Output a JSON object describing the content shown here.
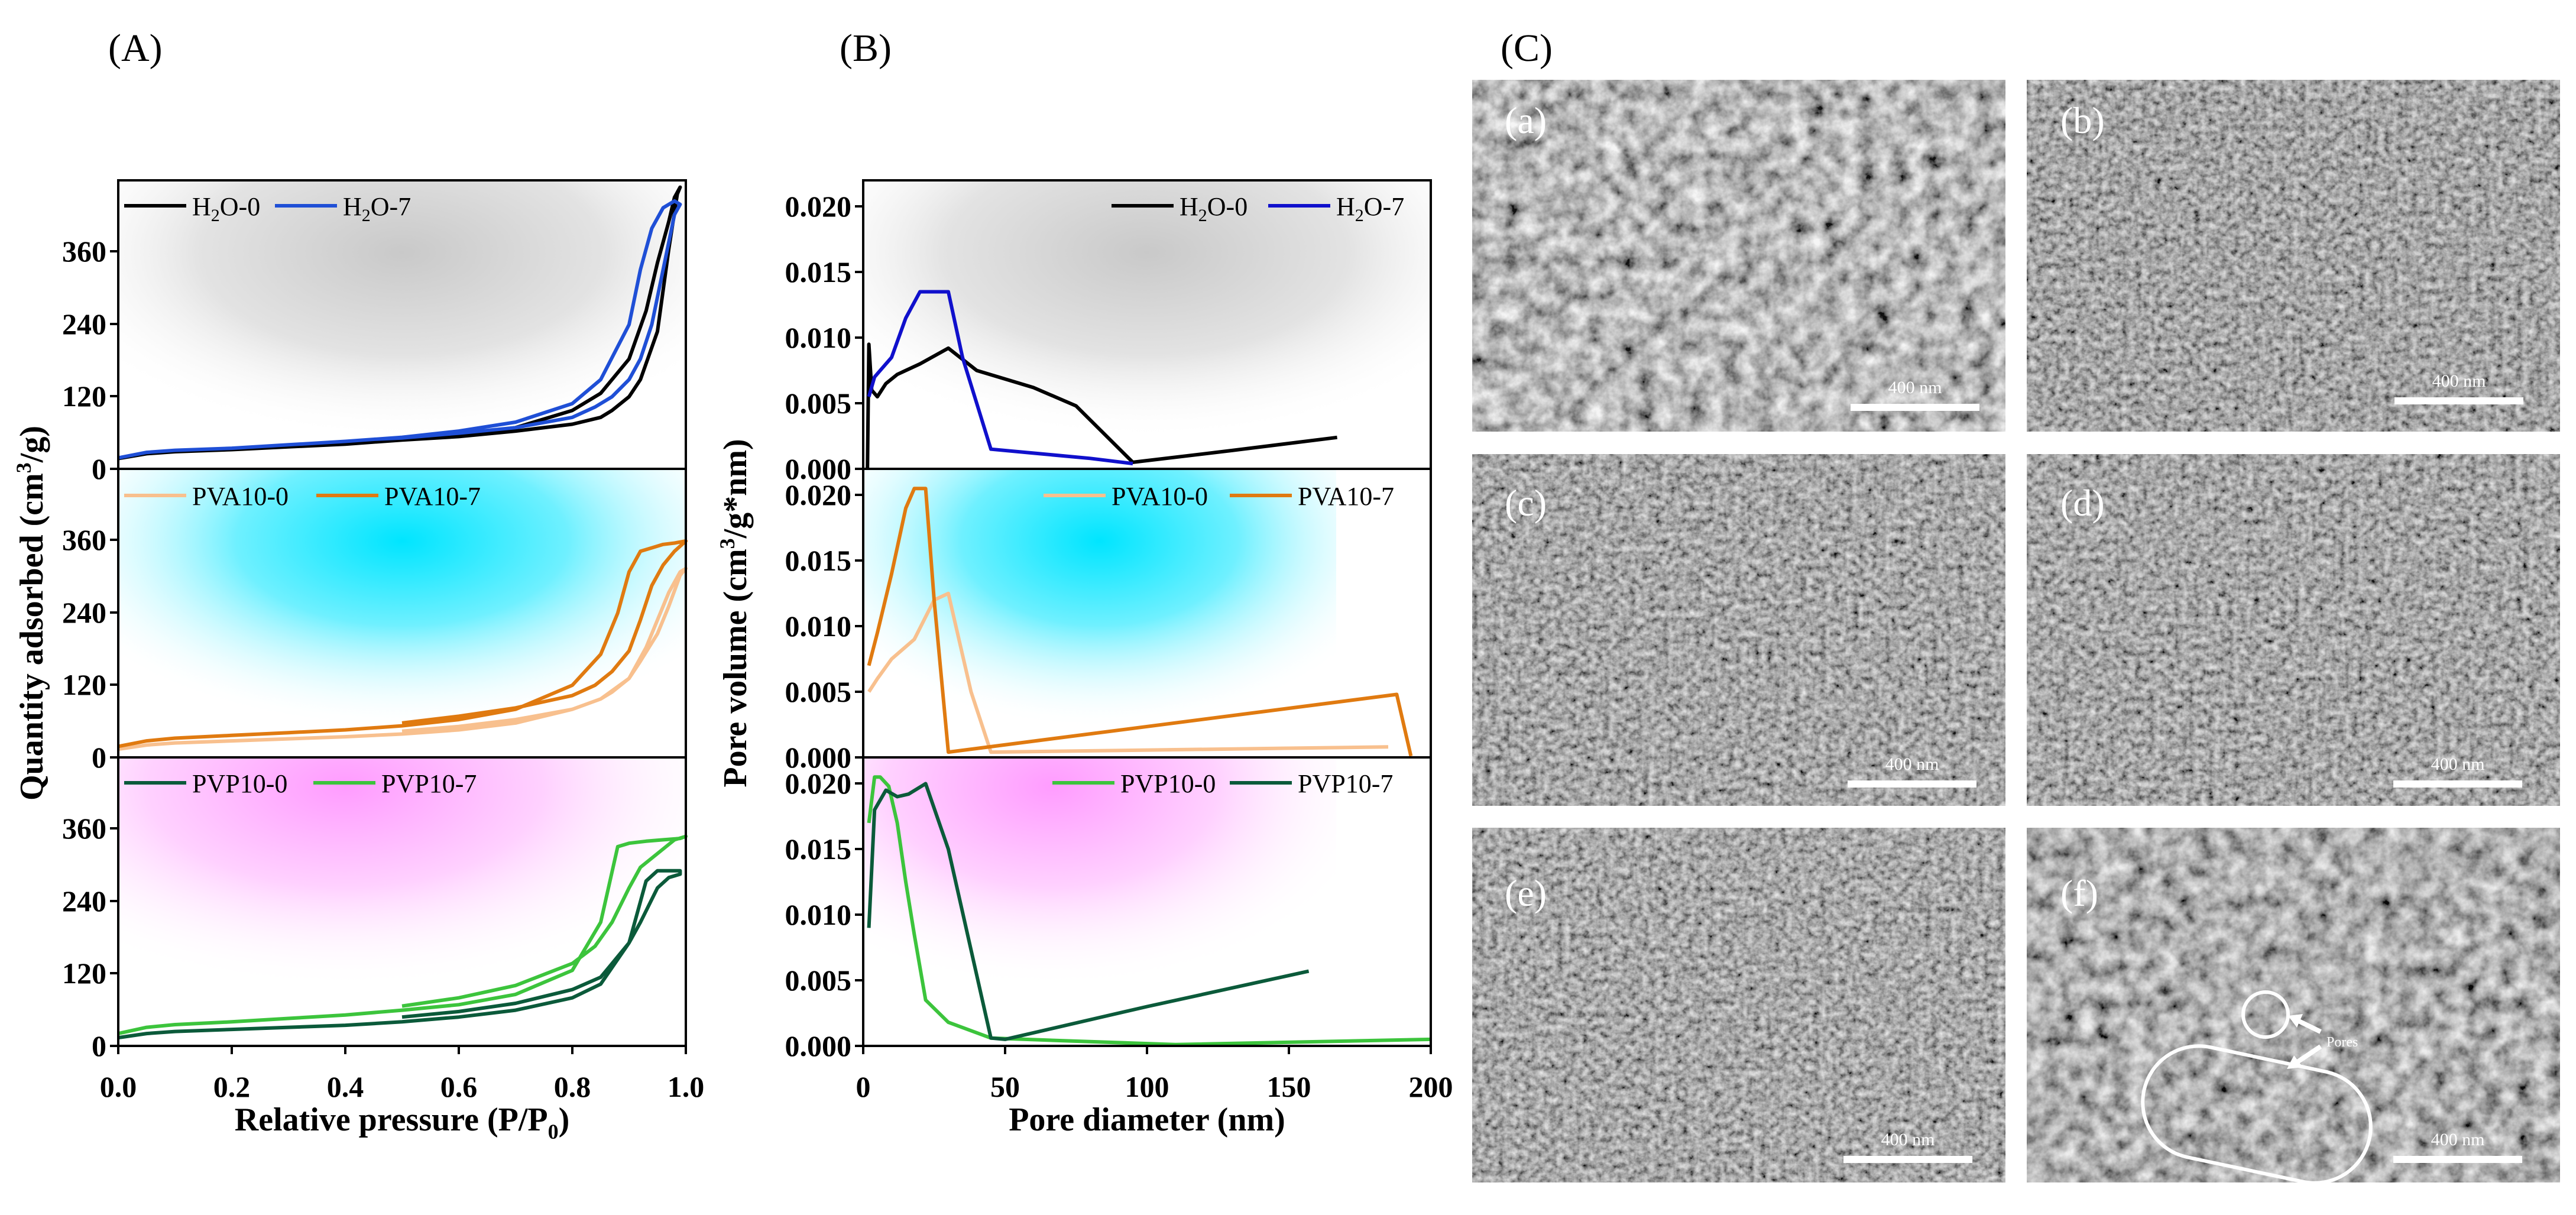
{
  "panels": {
    "A": {
      "letter": "(A)",
      "xlabel": "Relative pressure (P/P",
      "xlabel_sub": "0",
      "xlabel_tail": ")",
      "ylabel": "Quantity adsorbed (cm",
      "ylabel_sup": "3",
      "ylabel_tail": "/g)",
      "x_ticks": [
        "0.0",
        "0.2",
        "0.4",
        "0.6",
        "0.8",
        "1.0"
      ],
      "y_ticks": [
        "0",
        "120",
        "240",
        "360"
      ]
    },
    "B": {
      "letter": "(B)",
      "xlabel": "Pore diameter (nm)",
      "ylabel": "Pore volume (cm",
      "ylabel_sup": "3",
      "ylabel_tail": "/g*nm)",
      "x_ticks": [
        "0",
        "50",
        "100",
        "150",
        "200"
      ],
      "y_ticks": [
        "0.000",
        "0.005",
        "0.010",
        "0.015",
        "0.020"
      ]
    },
    "C": {
      "letter": "(C)",
      "images": [
        {
          "label": "(a)",
          "scale": "400 nm"
        },
        {
          "label": "(b)",
          "scale": "400 nm"
        },
        {
          "label": "(c)",
          "scale": "400 nm"
        },
        {
          "label": "(d)",
          "scale": "400 nm"
        },
        {
          "label": "(e)",
          "scale": "400 nm"
        },
        {
          "label": "(f)",
          "scale": "400 nm"
        }
      ],
      "pores_label": "Pores"
    }
  },
  "legends": {
    "A1": [
      {
        "base": "H",
        "sub": "2",
        "tail": "O-0",
        "color": "#000000"
      },
      {
        "base": "H",
        "sub": "2",
        "tail": "O-7",
        "color": "#1f4fd6"
      }
    ],
    "A2": [
      {
        "base": "PVA10-0",
        "sub": "",
        "tail": "",
        "color": "#f8c08e"
      },
      {
        "base": "PVA10-7",
        "sub": "",
        "tail": "",
        "color": "#e07a10"
      }
    ],
    "A3": [
      {
        "base": "PVP10-0",
        "sub": "",
        "tail": "",
        "color": "#0b5a3a"
      },
      {
        "base": "PVP10-7",
        "sub": "",
        "tail": "",
        "color": "#3cc43c"
      }
    ],
    "B1": [
      {
        "base": "H",
        "sub": "2",
        "tail": "O-0",
        "color": "#000000"
      },
      {
        "base": "H",
        "sub": "2",
        "tail": "O-7",
        "color": "#1010cc"
      }
    ],
    "B2": [
      {
        "base": "PVA10-0",
        "sub": "",
        "tail": "",
        "color": "#f8c08e"
      },
      {
        "base": "PVA10-7",
        "sub": "",
        "tail": "",
        "color": "#e07a10"
      }
    ],
    "B3": [
      {
        "base": "PVP10-0",
        "sub": "",
        "tail": "",
        "color": "#3cc43c"
      },
      {
        "base": "PVP10-7",
        "sub": "",
        "tail": "",
        "color": "#0b5a3a"
      }
    ]
  },
  "chart_data": [
    {
      "type": "line",
      "panel": "A",
      "subplot": 1,
      "xlim": [
        0,
        1.0
      ],
      "ylim": [
        0,
        420
      ],
      "series": [
        {
          "name": "H2O-0",
          "color": "#000000",
          "x": [
            0.0,
            0.05,
            0.1,
            0.2,
            0.3,
            0.4,
            0.5,
            0.6,
            0.7,
            0.8,
            0.85,
            0.9,
            0.93,
            0.95,
            0.97,
            0.98,
            0.99,
            0.985,
            0.97,
            0.95,
            0.92,
            0.9,
            0.87,
            0.85,
            0.8,
            0.7,
            0.6,
            0.5,
            0.45
          ],
          "y": [
            15,
            22,
            25,
            28,
            32,
            36,
            42,
            50,
            60,
            85,
            110,
            160,
            230,
            300,
            360,
            395,
            410,
            400,
            320,
            200,
            130,
            105,
            85,
            75,
            65,
            55,
            47,
            42,
            40
          ]
        },
        {
          "name": "H2O-7",
          "color": "#1f4fd6",
          "x": [
            0.0,
            0.05,
            0.1,
            0.2,
            0.3,
            0.4,
            0.5,
            0.6,
            0.7,
            0.8,
            0.85,
            0.9,
            0.92,
            0.94,
            0.96,
            0.98,
            0.99,
            0.98,
            0.96,
            0.94,
            0.92,
            0.9,
            0.87,
            0.84,
            0.8,
            0.7,
            0.6,
            0.5,
            0.45
          ],
          "y": [
            16,
            24,
            27,
            30,
            35,
            40,
            46,
            55,
            68,
            95,
            130,
            210,
            290,
            350,
            380,
            390,
            385,
            370,
            290,
            210,
            160,
            130,
            105,
            90,
            75,
            60,
            52,
            45,
            43
          ]
        }
      ]
    },
    {
      "type": "line",
      "panel": "A",
      "subplot": 2,
      "xlim": [
        0,
        1.0
      ],
      "ylim": [
        0,
        420
      ],
      "series": [
        {
          "name": "PVA10-0",
          "color": "#f8c08e",
          "x": [
            0.0,
            0.05,
            0.1,
            0.2,
            0.3,
            0.4,
            0.5,
            0.6,
            0.7,
            0.8,
            0.85,
            0.9,
            0.93,
            0.95,
            0.97,
            0.99,
            1.0,
            0.99,
            0.97,
            0.95,
            0.92,
            0.9,
            0.87,
            0.85,
            0.8,
            0.7,
            0.6,
            0.5
          ],
          "y": [
            12,
            18,
            21,
            24,
            27,
            30,
            34,
            40,
            50,
            70,
            85,
            115,
            160,
            200,
            240,
            270,
            275,
            265,
            220,
            180,
            140,
            115,
            95,
            85,
            70,
            55,
            45,
            38
          ]
        },
        {
          "name": "PVA10-7",
          "color": "#e07a10",
          "x": [
            0.0,
            0.05,
            0.1,
            0.2,
            0.3,
            0.4,
            0.5,
            0.6,
            0.7,
            0.8,
            0.85,
            0.88,
            0.9,
            0.92,
            0.94,
            0.96,
            0.98,
            1.0,
            0.98,
            0.96,
            0.94,
            0.92,
            0.9,
            0.87,
            0.84,
            0.8,
            0.7,
            0.6,
            0.5
          ],
          "y": [
            16,
            24,
            28,
            32,
            36,
            40,
            46,
            55,
            70,
            105,
            150,
            210,
            270,
            300,
            305,
            310,
            312,
            315,
            300,
            280,
            250,
            200,
            155,
            125,
            105,
            90,
            72,
            60,
            50
          ]
        }
      ]
    },
    {
      "type": "line",
      "panel": "A",
      "subplot": 3,
      "xlim": [
        0,
        1.0
      ],
      "ylim": [
        0,
        420
      ],
      "series": [
        {
          "name": "PVP10-0",
          "color": "#0b5a3a",
          "x": [
            0.0,
            0.05,
            0.1,
            0.2,
            0.3,
            0.4,
            0.5,
            0.6,
            0.7,
            0.8,
            0.85,
            0.9,
            0.93,
            0.95,
            0.97,
            0.99,
            0.99,
            0.97,
            0.95,
            0.92,
            0.9,
            0.87,
            0.85,
            0.8,
            0.7,
            0.6,
            0.5
          ],
          "y": [
            12,
            18,
            21,
            24,
            27,
            30,
            35,
            42,
            52,
            70,
            90,
            150,
            240,
            255,
            255,
            255,
            250,
            245,
            230,
            180,
            150,
            120,
            100,
            82,
            62,
            50,
            42
          ]
        },
        {
          "name": "PVP10-7",
          "color": "#3cc43c",
          "x": [
            0.0,
            0.05,
            0.1,
            0.2,
            0.3,
            0.4,
            0.5,
            0.6,
            0.7,
            0.8,
            0.85,
            0.88,
            0.9,
            0.93,
            0.96,
            0.99,
            1.0,
            0.98,
            0.95,
            0.92,
            0.9,
            0.87,
            0.84,
            0.8,
            0.7,
            0.6,
            0.5
          ],
          "y": [
            18,
            27,
            31,
            35,
            40,
            45,
            52,
            60,
            75,
            110,
            180,
            290,
            295,
            298,
            300,
            302,
            305,
            300,
            280,
            260,
            230,
            180,
            145,
            120,
            88,
            70,
            58
          ]
        }
      ]
    },
    {
      "type": "line",
      "panel": "B",
      "subplot": 1,
      "xlim": [
        0,
        200
      ],
      "ylim": [
        0,
        0.022
      ],
      "series": [
        {
          "name": "H2O-0",
          "color": "#000000",
          "x": [
            1.5,
            2,
            3,
            5,
            8,
            12,
            20,
            30,
            40,
            60,
            75,
            95,
            130,
            167
          ],
          "y": [
            0.0,
            0.0095,
            0.006,
            0.0055,
            0.0065,
            0.0072,
            0.008,
            0.0092,
            0.0075,
            0.0062,
            0.0048,
            0.0005,
            0.0014,
            0.0024
          ]
        },
        {
          "name": "H2O-7",
          "color": "#1010cc",
          "x": [
            2,
            4,
            6,
            10,
            15,
            20,
            25,
            30,
            35,
            45,
            60,
            80,
            95
          ],
          "y": [
            0.0055,
            0.007,
            0.0075,
            0.0085,
            0.0115,
            0.0135,
            0.0135,
            0.0135,
            0.0085,
            0.0015,
            0.0012,
            0.0008,
            0.0004
          ]
        }
      ]
    },
    {
      "type": "line",
      "panel": "B",
      "subplot": 2,
      "xlim": [
        0,
        200
      ],
      "ylim": [
        0,
        0.022
      ],
      "series": [
        {
          "name": "PVA10-0",
          "color": "#f8c08e",
          "x": [
            2,
            5,
            10,
            18,
            25,
            30,
            38,
            45,
            185
          ],
          "y": [
            0.005,
            0.006,
            0.0075,
            0.009,
            0.012,
            0.0125,
            0.005,
            0.0004,
            0.0008
          ]
        },
        {
          "name": "PVA10-7",
          "color": "#e07a10",
          "x": [
            2,
            5,
            10,
            15,
            18,
            22,
            25,
            30,
            188,
            193
          ],
          "y": [
            0.007,
            0.0095,
            0.014,
            0.019,
            0.0205,
            0.0205,
            0.012,
            0.0004,
            0.0048,
            0.0001
          ]
        }
      ]
    },
    {
      "type": "line",
      "panel": "B",
      "subplot": 3,
      "xlim": [
        0,
        200
      ],
      "ylim": [
        0,
        0.022
      ],
      "series": [
        {
          "name": "PVP10-0",
          "color": "#3cc43c",
          "x": [
            2,
            4,
            6,
            9,
            12,
            15,
            18,
            22,
            30,
            45,
            70,
            110,
            200
          ],
          "y": [
            0.017,
            0.0205,
            0.0205,
            0.0198,
            0.017,
            0.0125,
            0.0085,
            0.0035,
            0.0018,
            0.0006,
            0.0004,
            0.0001,
            0.0005
          ]
        },
        {
          "name": "PVP10-7",
          "color": "#0b5a3a",
          "x": [
            2,
            4,
            8,
            12,
            16,
            22,
            30,
            45,
            50,
            100,
            157
          ],
          "y": [
            0.009,
            0.018,
            0.0195,
            0.019,
            0.0192,
            0.02,
            0.015,
            0.0006,
            0.0005,
            0.003,
            0.0057
          ]
        }
      ]
    }
  ]
}
